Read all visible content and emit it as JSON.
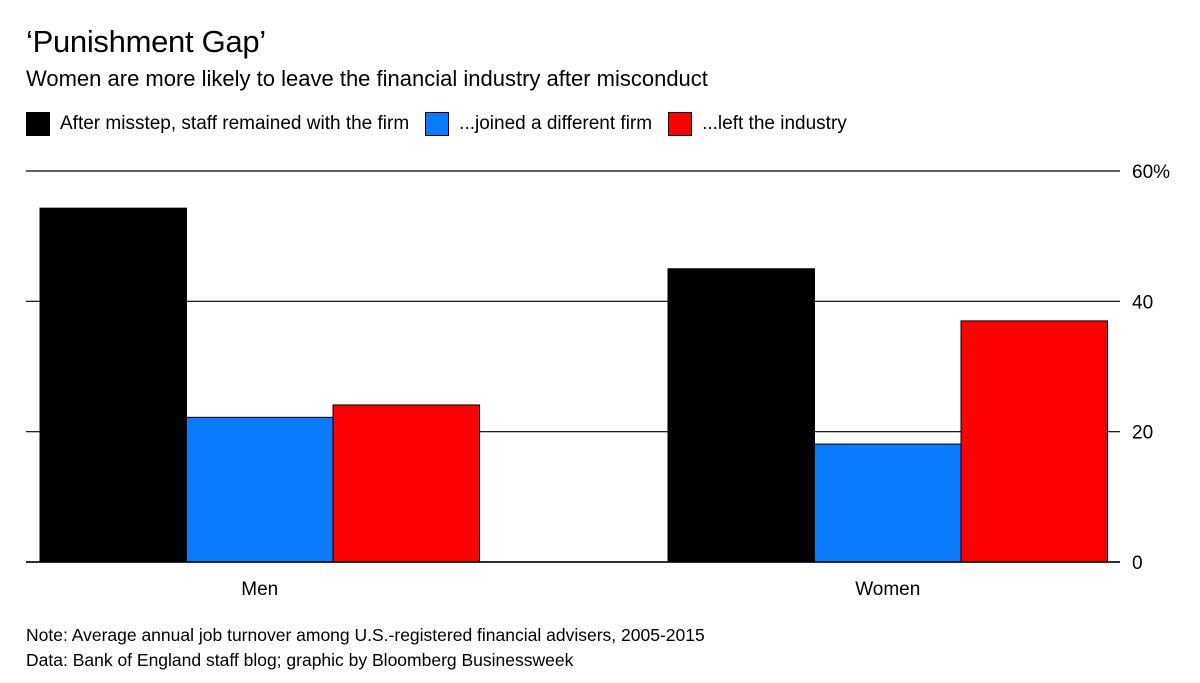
{
  "title": "‘Punishment Gap’",
  "subtitle": "Women are more likely to leave the financial industry after misconduct",
  "note": "Note: Average annual job turnover among U.S.-registered financial advisers, 2005-2015",
  "source": "Data: Bank of England staff blog; graphic by Bloomberg Businessweek",
  "colors": {
    "remained": "#000000",
    "joined": "#0a7bff",
    "left": "#ff0000"
  },
  "chart_data": {
    "type": "bar",
    "categories": [
      "Men",
      "Women"
    ],
    "series": [
      {
        "name": "After misstep, staff remained with the firm",
        "color": "#000000",
        "values": [
          54.3,
          45.0
        ]
      },
      {
        "name": "...joined a different firm",
        "color": "#0a7bff",
        "values": [
          22.2,
          18.1
        ]
      },
      {
        "name": "...left the industry",
        "color": "#ff0000",
        "values": [
          24.1,
          37.0
        ]
      }
    ],
    "ylim": [
      0,
      60
    ],
    "yticks": [
      0,
      20,
      40,
      60
    ],
    "ytick_labels": [
      "0",
      "20",
      "40",
      "60%"
    ],
    "grid": true,
    "legend_position": "top-left",
    "yaxis_side": "right"
  }
}
